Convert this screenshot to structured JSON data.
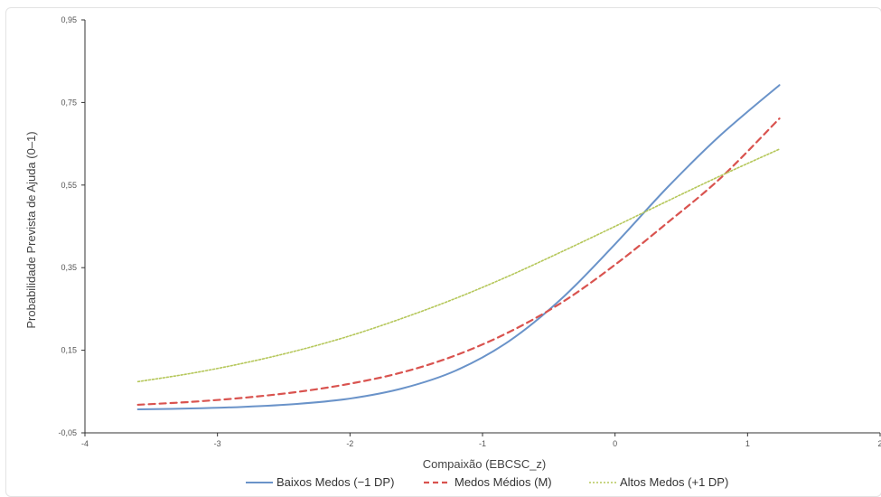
{
  "chart_data": {
    "type": "line",
    "title": "",
    "xlabel": "Compaixão (EBCSC_z)",
    "ylabel": "Probabilidade Prevista de Ajuda (0–1)",
    "xlim": [
      -4,
      2
    ],
    "ylim": [
      -0.05,
      0.95
    ],
    "x_ticks": [
      -4,
      -3,
      -2,
      -1,
      0,
      1,
      2
    ],
    "y_ticks": [
      -0.05,
      0.15,
      0.35,
      0.55,
      0.75,
      0.95
    ],
    "x_tick_labels": [
      "-4",
      "-3",
      "-2",
      "-1",
      "0",
      "1",
      "2"
    ],
    "y_tick_labels": [
      "-0,05",
      "0,15",
      "0,35",
      "0,55",
      "0,75",
      "0,95"
    ],
    "grid": false,
    "legend_position": "bottom",
    "x": [
      -3.6,
      -3.2,
      -2.8,
      -2.4,
      -2.0,
      -1.6,
      -1.2,
      -0.8,
      -0.4,
      0.0,
      0.4,
      0.8,
      1.24
    ],
    "series": [
      {
        "name": "Baixos Medos (−1 DP)",
        "color": "#6a93c9",
        "dash": "solid",
        "values": [
          0.007,
          0.009,
          0.013,
          0.02,
          0.033,
          0.058,
          0.101,
          0.172,
          0.276,
          0.407,
          0.546,
          0.672,
          0.792
        ]
      },
      {
        "name": "Medos Médios (M)",
        "color": "#d9534f",
        "dash": "dashed",
        "values": [
          0.018,
          0.025,
          0.035,
          0.049,
          0.069,
          0.097,
          0.138,
          0.194,
          0.266,
          0.357,
          0.46,
          0.568,
          0.711
        ]
      },
      {
        "name": "Altos Medos (+1 DP)",
        "color": "#b5c75a",
        "dash": "dotted",
        "values": [
          0.074,
          0.094,
          0.119,
          0.149,
          0.185,
          0.228,
          0.276,
          0.33,
          0.389,
          0.45,
          0.512,
          0.573,
          0.637
        ]
      }
    ]
  }
}
